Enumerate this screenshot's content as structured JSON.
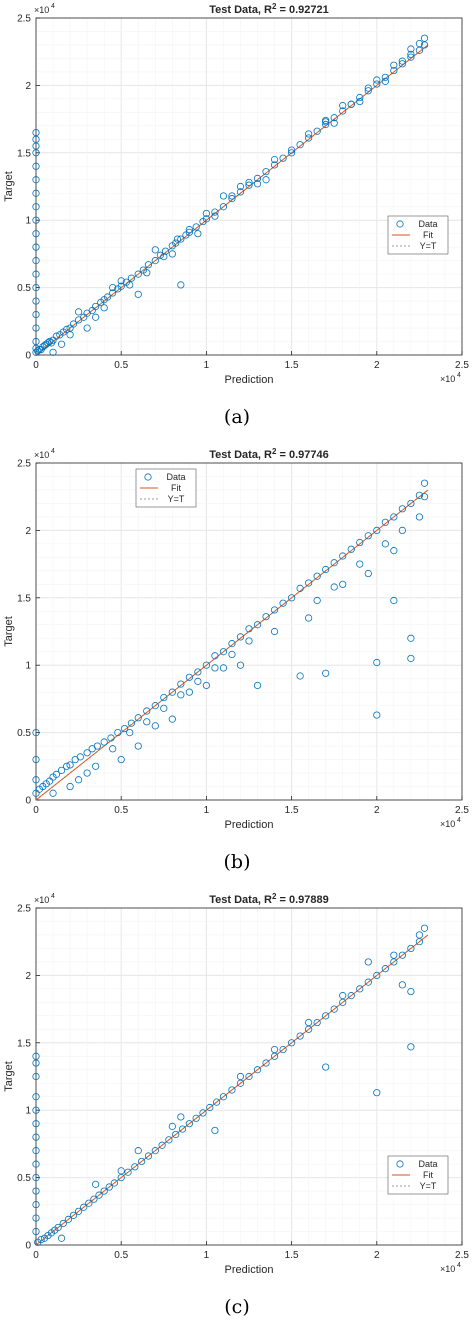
{
  "chart_data": [
    {
      "type": "scatter",
      "title": "Test Data, R",
      "title_sup": "2",
      "title_value": " = 0.92721",
      "xlabel": "Prediction",
      "ylabel": "Target",
      "xlim": [
        0,
        25000
      ],
      "ylim": [
        0,
        25000
      ],
      "x_ticks": [
        0,
        5000,
        10000,
        15000,
        20000,
        25000
      ],
      "x_tick_labels": [
        "0",
        "0.5",
        "1",
        "1.5",
        "2",
        "2.5"
      ],
      "y_ticks": [
        0,
        5000,
        10000,
        15000,
        20000,
        25000
      ],
      "y_tick_labels": [
        "0",
        "0.5",
        "1",
        "1.5",
        "2",
        "2.5"
      ],
      "x_exponent_label": "×10",
      "x_exponent_power": "4",
      "y_exponent_label": "×10",
      "y_exponent_power": "4",
      "grid": true,
      "legend_position": "right-middle",
      "legend": [
        "Data",
        "Fit",
        "Y=T"
      ],
      "fit": {
        "slope": 1.0,
        "intercept": 0
      },
      "series": [
        {
          "name": "Data",
          "x": [
            0,
            0,
            0,
            0,
            0,
            0,
            0,
            0,
            0,
            0,
            0,
            0,
            0,
            0,
            0,
            0,
            0,
            0,
            0,
            0,
            100,
            200,
            300,
            400,
            500,
            600,
            700,
            800,
            900,
            1000,
            1200,
            1400,
            1600,
            1800,
            2000,
            2200,
            2500,
            2800,
            3000,
            3300,
            3500,
            3800,
            4000,
            4200,
            4500,
            4800,
            5000,
            5300,
            5600,
            6000,
            6300,
            6600,
            7000,
            7300,
            7600,
            8000,
            8200,
            8500,
            8800,
            9000,
            9400,
            9800,
            10000,
            10500,
            11000,
            11500,
            12000,
            12500,
            13000,
            13500,
            14000,
            14500,
            15000,
            15500,
            16000,
            16500,
            17000,
            17500,
            18000,
            18500,
            19000,
            19500,
            20000,
            20500,
            21000,
            21500,
            22000,
            22500,
            22800,
            1000,
            2000,
            3000,
            4000,
            5000,
            6000,
            8300,
            8500,
            9500,
            12000,
            13500,
            17000,
            18000,
            19000,
            20000,
            21000,
            22000,
            22500,
            22800,
            7000,
            8000,
            10000,
            11000,
            2500,
            1500,
            3500,
            4500,
            5500,
            6500,
            7500,
            9000,
            10500,
            11500,
            12500,
            13000,
            14000,
            15000,
            16000,
            17000,
            17500,
            18500,
            19500,
            20500,
            21500,
            22000
          ],
          "y": [
            16500,
            16000,
            15500,
            15000,
            14000,
            13000,
            12000,
            11000,
            10000,
            9000,
            8000,
            7000,
            6000,
            5000,
            4000,
            3000,
            2000,
            1000,
            500,
            200,
            300,
            400,
            400,
            600,
            700,
            800,
            900,
            1000,
            900,
            1100,
            1400,
            1500,
            1700,
            1900,
            2000,
            2300,
            2600,
            2800,
            3100,
            3300,
            3600,
            3900,
            4100,
            4300,
            4600,
            4900,
            5100,
            5400,
            5700,
            6000,
            6300,
            6700,
            7000,
            7400,
            7700,
            8100,
            8300,
            8600,
            8900,
            9100,
            9500,
            9900,
            10100,
            10600,
            11000,
            11600,
            12100,
            12600,
            13100,
            13600,
            14100,
            14600,
            15000,
            15600,
            16100,
            16600,
            17100,
            17600,
            18100,
            18600,
            19100,
            19600,
            20100,
            20600,
            21100,
            21600,
            22100,
            22600,
            23000,
            200,
            1500,
            2000,
            3500,
            5500,
            4500,
            8600,
            5200,
            9000,
            12500,
            13000,
            17400,
            18500,
            18800,
            20400,
            21500,
            22300,
            23100,
            23500,
            7800,
            7500,
            10500,
            11800,
            3200,
            800,
            2800,
            5000,
            5200,
            6100,
            7300,
            9300,
            10300,
            11800,
            12800,
            12700,
            14500,
            15200,
            16400,
            17300,
            17200,
            18600,
            19800,
            20300,
            21800,
            22700
          ]
        }
      ]
    },
    {
      "type": "scatter",
      "title": "Test Data, R",
      "title_sup": "2",
      "title_value": " = 0.97746",
      "xlabel": "Prediction",
      "ylabel": "Target",
      "xlim": [
        0,
        25000
      ],
      "ylim": [
        0,
        25000
      ],
      "x_ticks": [
        0,
        5000,
        10000,
        15000,
        20000,
        25000
      ],
      "x_tick_labels": [
        "0",
        "0.5",
        "1",
        "1.5",
        "2",
        "2.5"
      ],
      "y_ticks": [
        0,
        5000,
        10000,
        15000,
        20000,
        25000
      ],
      "y_tick_labels": [
        "0",
        "0.5",
        "1",
        "1.5",
        "2",
        "2.5"
      ],
      "x_exponent_label": "×10",
      "x_exponent_power": "4",
      "y_exponent_label": "×10",
      "y_exponent_power": "4",
      "grid": true,
      "legend_position": "top-left",
      "legend": [
        "Data",
        "Fit",
        "Y=T"
      ],
      "fit": {
        "slope": 1.0,
        "intercept": 0
      },
      "series": [
        {
          "name": "Data",
          "x": [
            0,
            0,
            0,
            0,
            200,
            400,
            600,
            800,
            1000,
            1200,
            1500,
            1800,
            2000,
            2300,
            2600,
            3000,
            3300,
            3600,
            4000,
            4400,
            4800,
            5200,
            5600,
            6000,
            6500,
            7000,
            7500,
            8000,
            8500,
            9000,
            9500,
            10000,
            10500,
            11000,
            11500,
            12000,
            12500,
            13000,
            13500,
            14000,
            14500,
            15000,
            15500,
            16000,
            16500,
            17000,
            17500,
            18000,
            18500,
            19000,
            19500,
            20000,
            20500,
            21000,
            21500,
            22000,
            22500,
            22800,
            13000,
            15500,
            17000,
            20000,
            20000,
            22000,
            22000,
            21000,
            19500,
            12000,
            9000,
            7000,
            5000,
            3000,
            2000,
            1000,
            16000,
            18000,
            21000,
            22500,
            6000,
            8000,
            10000,
            11000,
            14000,
            16500,
            17500,
            19000,
            20500,
            21500,
            22800,
            2500,
            3500,
            4500,
            5500,
            6500,
            7500,
            8500,
            9500,
            10500,
            11500,
            12500
          ],
          "y": [
            5000,
            3000,
            1500,
            500,
            800,
            1000,
            1200,
            1400,
            1700,
            1900,
            2200,
            2500,
            2600,
            3000,
            3200,
            3500,
            3800,
            4000,
            4300,
            4600,
            5000,
            5300,
            5700,
            6100,
            6600,
            7000,
            7600,
            8000,
            8600,
            9100,
            9500,
            10000,
            10700,
            11000,
            11600,
            12100,
            12700,
            13000,
            13600,
            14100,
            14600,
            15000,
            15700,
            16100,
            16600,
            17100,
            17600,
            18100,
            18600,
            19100,
            19600,
            20000,
            20600,
            21000,
            21600,
            22000,
            22600,
            23500,
            8500,
            9200,
            9400,
            6300,
            10200,
            10500,
            12000,
            14800,
            16800,
            10000,
            8000,
            5500,
            3000,
            2000,
            1000,
            500,
            13500,
            16000,
            18500,
            21000,
            4000,
            6000,
            8500,
            9800,
            12500,
            14800,
            15800,
            17500,
            19000,
            20000,
            22500,
            1500,
            2500,
            3800,
            5000,
            5800,
            6800,
            7800,
            8800,
            9800,
            10800,
            11800
          ]
        }
      ]
    },
    {
      "type": "scatter",
      "title": "Test Data, R",
      "title_sup": "2",
      "title_value": " = 0.97889",
      "xlabel": "Prediction",
      "ylabel": "Target",
      "xlim": [
        0,
        25000
      ],
      "ylim": [
        0,
        25000
      ],
      "x_ticks": [
        0,
        5000,
        10000,
        15000,
        20000,
        25000
      ],
      "x_tick_labels": [
        "0",
        "0.5",
        "1",
        "1.5",
        "2",
        "2.5"
      ],
      "y_ticks": [
        0,
        5000,
        10000,
        15000,
        20000,
        25000
      ],
      "y_tick_labels": [
        "0",
        "0.5",
        "1",
        "1.5",
        "2",
        "2.5"
      ],
      "x_exponent_label": "×10",
      "x_exponent_power": "4",
      "y_exponent_label": "×10",
      "y_exponent_power": "4",
      "grid": true,
      "legend_position": "bottom-right",
      "legend": [
        "Data",
        "Fit",
        "Y=T"
      ],
      "fit": {
        "slope": 1.0,
        "intercept": 0
      },
      "series": [
        {
          "name": "Data",
          "x": [
            0,
            0,
            0,
            0,
            0,
            0,
            0,
            0,
            0,
            0,
            0,
            0,
            0,
            0,
            100,
            300,
            500,
            700,
            900,
            1100,
            1300,
            1600,
            1900,
            2200,
            2500,
            2800,
            3100,
            3400,
            3700,
            4000,
            4300,
            4600,
            5000,
            5400,
            5800,
            6200,
            6600,
            7000,
            7400,
            7800,
            8200,
            8600,
            9000,
            9400,
            9800,
            10200,
            10600,
            11000,
            11500,
            12000,
            12500,
            13000,
            13500,
            14000,
            14500,
            15000,
            15500,
            16000,
            16500,
            17000,
            17500,
            18000,
            18500,
            19000,
            19500,
            20000,
            20500,
            21000,
            21500,
            22000,
            22500,
            22800,
            17000,
            20000,
            22000,
            22000,
            21500,
            19500,
            10500,
            8500,
            5000,
            3500,
            1500,
            6000,
            8000,
            12000,
            14000,
            16000,
            18000,
            21000,
            22500
          ],
          "y": [
            14000,
            13500,
            12500,
            11000,
            10000,
            9000,
            8000,
            7000,
            6000,
            5000,
            4000,
            3000,
            2000,
            1000,
            200,
            400,
            500,
            700,
            900,
            1100,
            1300,
            1600,
            1900,
            2200,
            2500,
            2800,
            3100,
            3400,
            3700,
            4000,
            4300,
            4600,
            5000,
            5400,
            5800,
            6200,
            6600,
            7000,
            7400,
            7800,
            8200,
            8600,
            9000,
            9400,
            9800,
            10200,
            10600,
            11000,
            11500,
            12000,
            12500,
            13000,
            13500,
            14000,
            14500,
            15000,
            15500,
            16000,
            16500,
            17000,
            17500,
            18000,
            18500,
            19000,
            19500,
            20000,
            20500,
            21000,
            21500,
            22000,
            22500,
            23500,
            13200,
            11300,
            14700,
            18800,
            19300,
            21000,
            8500,
            9500,
            5500,
            4500,
            500,
            7000,
            8800,
            12500,
            14500,
            16500,
            18500,
            21500,
            23000
          ]
        }
      ]
    }
  ],
  "captions": [
    "(a)",
    "(b)",
    "(c)"
  ],
  "colors": {
    "data": "#0072BD",
    "fit": "#D95319",
    "identity": "#999999",
    "grid": "#e6e6e6",
    "axis": "#262626"
  }
}
